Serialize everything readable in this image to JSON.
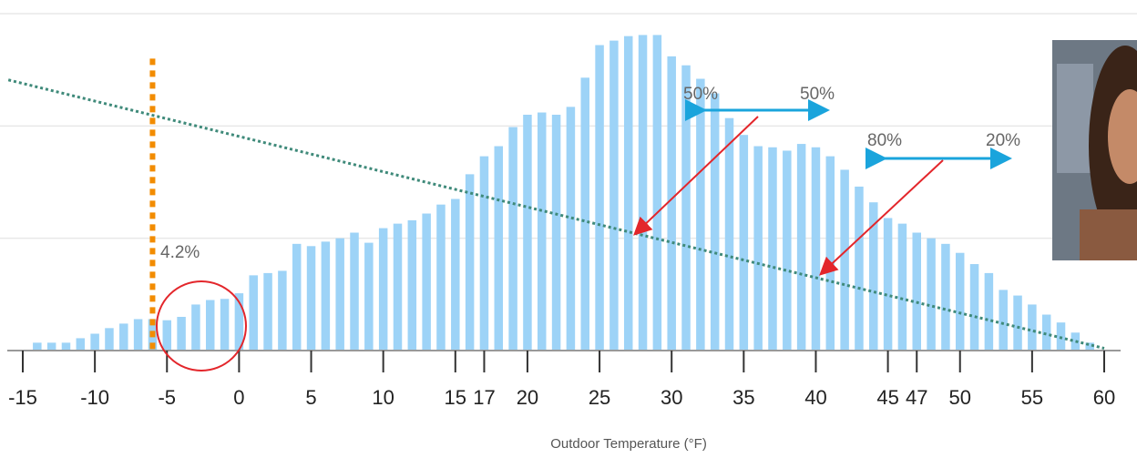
{
  "chart_data": {
    "type": "bar",
    "x_label": "Outdoor Temperature (°F)",
    "x": [
      -14,
      -13,
      -12,
      -11,
      -10,
      -9,
      -8,
      -7,
      -6,
      -5,
      -4,
      -3,
      -2,
      -1,
      0,
      1,
      2,
      3,
      4,
      5,
      6,
      7,
      8,
      9,
      10,
      11,
      12,
      13,
      14,
      15,
      16,
      17,
      18,
      19,
      20,
      21,
      22,
      23,
      24,
      25,
      26,
      27,
      28,
      29,
      30,
      31,
      32,
      33,
      34,
      35,
      36,
      37,
      38,
      39,
      40,
      41,
      42,
      43,
      44,
      45,
      46,
      47,
      48,
      49,
      50,
      51,
      52,
      53,
      54,
      55,
      56,
      57,
      58,
      59
    ],
    "values": [
      0.07,
      0.07,
      0.07,
      0.11,
      0.15,
      0.2,
      0.24,
      0.28,
      0.28,
      0.27,
      0.3,
      0.41,
      0.45,
      0.46,
      0.51,
      0.67,
      0.69,
      0.71,
      0.95,
      0.93,
      0.97,
      1.0,
      1.05,
      0.96,
      1.09,
      1.13,
      1.16,
      1.22,
      1.3,
      1.35,
      1.57,
      1.73,
      1.82,
      1.99,
      2.1,
      2.12,
      2.1,
      2.17,
      2.43,
      2.72,
      2.76,
      2.8,
      2.81,
      2.81,
      2.62,
      2.54,
      2.42,
      2.29,
      2.07,
      1.92,
      1.82,
      1.81,
      1.78,
      1.84,
      1.81,
      1.73,
      1.61,
      1.46,
      1.32,
      1.18,
      1.13,
      1.05,
      1.0,
      0.95,
      0.87,
      0.77,
      0.69,
      0.54,
      0.49,
      0.41,
      0.32,
      0.25,
      0.16,
      0.07
    ],
    "color": "#9dd3f7",
    "xlim": [
      -15,
      60
    ],
    "xticks": [
      -15,
      -10,
      -5,
      0,
      5,
      10,
      15,
      17,
      20,
      25,
      30,
      35,
      40,
      45,
      47,
      50,
      55,
      60
    ],
    "ylim": [
      0,
      3
    ],
    "grid_lines": [
      1,
      2,
      3
    ],
    "balance_line": {
      "x": [
        -16,
        60
      ],
      "y": [
        2.41,
        0.02
      ],
      "color": "#3f8a7a"
    },
    "threshold": {
      "x": -6,
      "y_top": 2.6,
      "color": "#f28c00"
    },
    "annotations": [
      "4.2%",
      "50%",
      "50%",
      "80%",
      "20%"
    ]
  }
}
